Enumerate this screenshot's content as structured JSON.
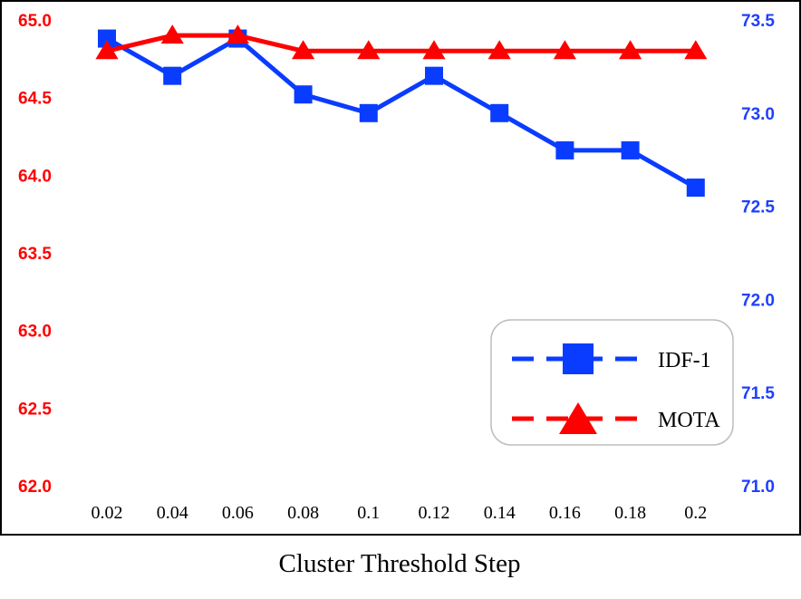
{
  "chart_data": {
    "type": "line",
    "xlabel": "Cluster Threshold Step",
    "categories": [
      "0.02",
      "0.04",
      "0.06",
      "0.08",
      "0.1",
      "0.12",
      "0.14",
      "0.16",
      "0.18",
      "0.2"
    ],
    "y_left": {
      "ylim": [
        62.0,
        65.0
      ],
      "ticks": [
        "62.0",
        "62.5",
        "63.0",
        "63.5",
        "64.0",
        "64.5",
        "65.0"
      ],
      "color": "#ff0000"
    },
    "y_right": {
      "ylim": [
        71.0,
        73.5
      ],
      "ticks": [
        "71.0",
        "71.5",
        "72.0",
        "72.5",
        "73.0",
        "73.5"
      ],
      "color": "#1f3fff"
    },
    "series": [
      {
        "name": "IDF-1",
        "axis": "right",
        "marker": "square",
        "color": "#0a3cff",
        "values": [
          73.4,
          73.2,
          73.4,
          73.1,
          73.0,
          73.2,
          73.0,
          72.8,
          72.8,
          72.6
        ]
      },
      {
        "name": "MOTA",
        "axis": "left",
        "marker": "triangle",
        "color": "#ff0000",
        "values": [
          64.8,
          64.9,
          64.9,
          64.8,
          64.8,
          64.8,
          64.8,
          64.8,
          64.8,
          64.8
        ]
      }
    ],
    "legend_position": "bottom-right",
    "grid": false
  }
}
